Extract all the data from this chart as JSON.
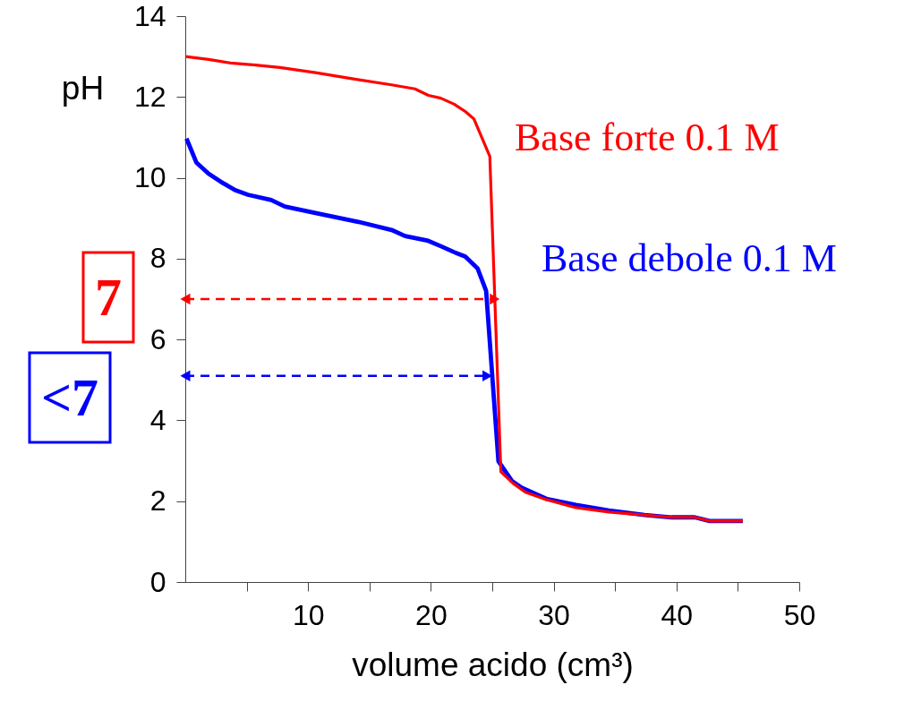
{
  "chart_data": {
    "type": "line",
    "xlabel": "volume acido  (cm³)",
    "ylabel": "pH",
    "xlim": [
      0,
      50
    ],
    "xticks": [
      {
        "value": 5,
        "label": null
      },
      10,
      {
        "value": 15,
        "label": null
      },
      20,
      {
        "value": 25,
        "label": null
      },
      30,
      {
        "value": 35,
        "label": null
      },
      40,
      {
        "value": 45,
        "label": null
      },
      50
    ],
    "ylim": [
      0,
      14
    ],
    "yticks": [
      0,
      2,
      4,
      6,
      8,
      10,
      12,
      14
    ],
    "grid": false,
    "series": [
      {
        "name": "Base forte 0.1 M",
        "color": "#ff0000",
        "x": [
          0,
          1.9,
          3.7,
          5.7,
          7.7,
          10.6,
          13.8,
          16.8,
          18.7,
          19.8,
          20.8,
          21.9,
          22.8,
          23.5,
          24.8,
          25.7,
          26.7,
          27.7,
          29.4,
          31.8,
          34.5,
          37.4,
          39.6,
          41.5,
          42.7,
          45.4
        ],
        "values": [
          13.0,
          12.93,
          12.84,
          12.79,
          12.73,
          12.6,
          12.44,
          12.3,
          12.2,
          12.04,
          11.97,
          11.82,
          11.64,
          11.46,
          10.53,
          2.73,
          2.44,
          2.22,
          2.04,
          1.84,
          1.73,
          1.66,
          1.6,
          1.6,
          1.51,
          1.51
        ]
      },
      {
        "name": "Base debole 0.1 M",
        "color": "#0000ff",
        "x": [
          0.1,
          0.9,
          1.9,
          2.9,
          4.1,
          5.1,
          7.0,
          8.1,
          10.6,
          14.1,
          16.8,
          17.9,
          19.7,
          20.8,
          21.9,
          22.8,
          23.8,
          24.5,
          25.5,
          26.6,
          27.4,
          29.4,
          31.8,
          34.5,
          37.4,
          39.6,
          41.5,
          42.7,
          45.4
        ],
        "values": [
          10.97,
          10.38,
          10.1,
          9.9,
          9.69,
          9.58,
          9.45,
          9.29,
          9.13,
          8.91,
          8.71,
          8.56,
          8.45,
          8.31,
          8.16,
          8.05,
          7.76,
          7.2,
          2.99,
          2.5,
          2.33,
          2.06,
          1.91,
          1.77,
          1.66,
          1.6,
          1.6,
          1.51,
          1.51
        ]
      },
      {
        "color": "#ff0000",
        "line_style": "dashed",
        "marker": "triangle",
        "x": [
          0,
          25.2
        ],
        "values": [
          7,
          7
        ]
      },
      {
        "color": "#0000ff",
        "line_style": "dashed",
        "marker": "triangle",
        "x": [
          0,
          24.6
        ],
        "values": [
          5.1,
          5.1
        ]
      }
    ],
    "annotations": [
      "7",
      "<7"
    ]
  }
}
